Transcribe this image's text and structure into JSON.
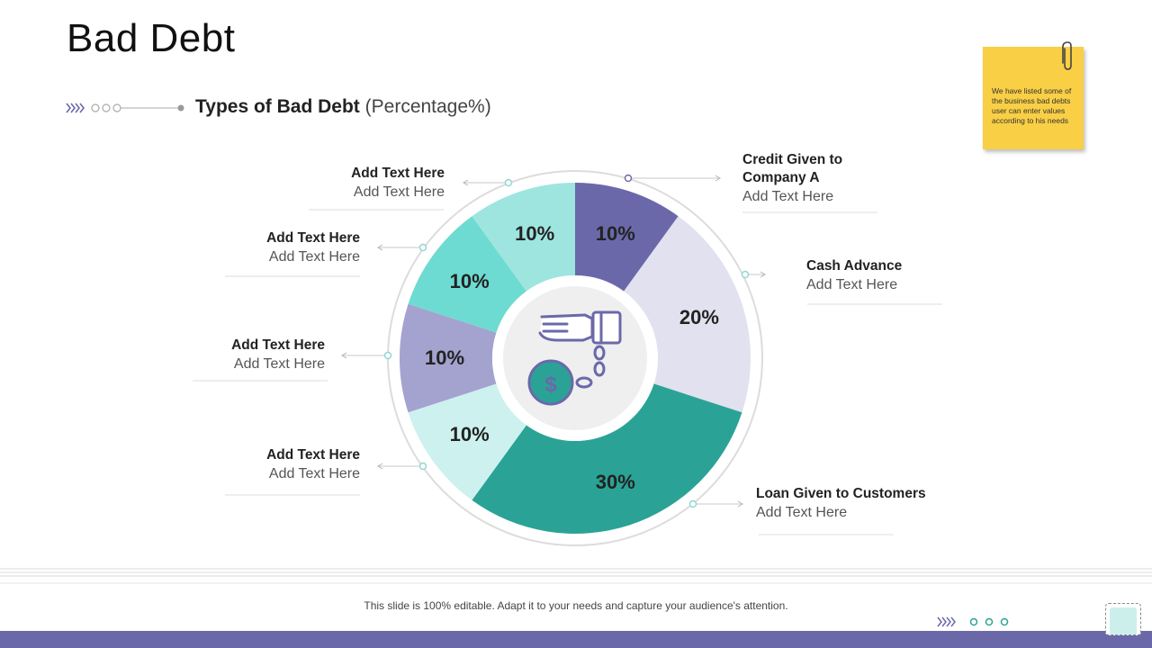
{
  "title": "Bad Debt",
  "subtitle": {
    "bold": "Types of Bad Debt",
    "light": "(Percentage%)"
  },
  "note": {
    "text": "We have listed some of the business bad debts user can enter values according to his needs",
    "color": "#f9cf45"
  },
  "chart_data": {
    "type": "pie",
    "variant": "donut",
    "title": "Types of Bad Debt (Percentage%)",
    "center_icon": "hand-chained-to-money-bag-icon",
    "slices": [
      {
        "label": "Credit Given to Company A",
        "value": 10,
        "value_label": "10%",
        "color": "#6b68aa"
      },
      {
        "label": "Cash Advance",
        "value": 20,
        "value_label": "20%",
        "color": "#e2e1ef"
      },
      {
        "label": "Loan Given to Customers",
        "value": 30,
        "value_label": "30%",
        "color": "#2aa396"
      },
      {
        "label": "Add Text Here",
        "value": 10,
        "value_label": "10%",
        "color": "#cdf1ee"
      },
      {
        "label": "Add Text Here",
        "value": 10,
        "value_label": "10%",
        "color": "#a4a2cf"
      },
      {
        "label": "Add Text Here",
        "value": 10,
        "value_label": "10%",
        "color": "#6ddbd1"
      },
      {
        "label": "Add Text Here",
        "value": 10,
        "value_label": "10%",
        "color": "#9ee5df"
      }
    ]
  },
  "callouts": [
    {
      "heading": "Credit Given to Company A",
      "sub": "Add Text Here"
    },
    {
      "heading": "Cash Advance",
      "sub": "Add Text Here"
    },
    {
      "heading": "Loan Given to Customers",
      "sub": "Add Text Here"
    },
    {
      "heading": "Add Text Here",
      "sub": "Add Text Here"
    },
    {
      "heading": "Add Text Here",
      "sub": "Add Text Here"
    },
    {
      "heading": "Add Text Here",
      "sub": "Add Text Here"
    },
    {
      "heading": "Add Text Here",
      "sub": "Add Text Here"
    }
  ],
  "footer": {
    "text": "This slide is 100% editable. Adapt it to your needs and capture your audience's attention."
  },
  "colors": {
    "accent": "#6b68aa",
    "teal": "#2aa396"
  }
}
